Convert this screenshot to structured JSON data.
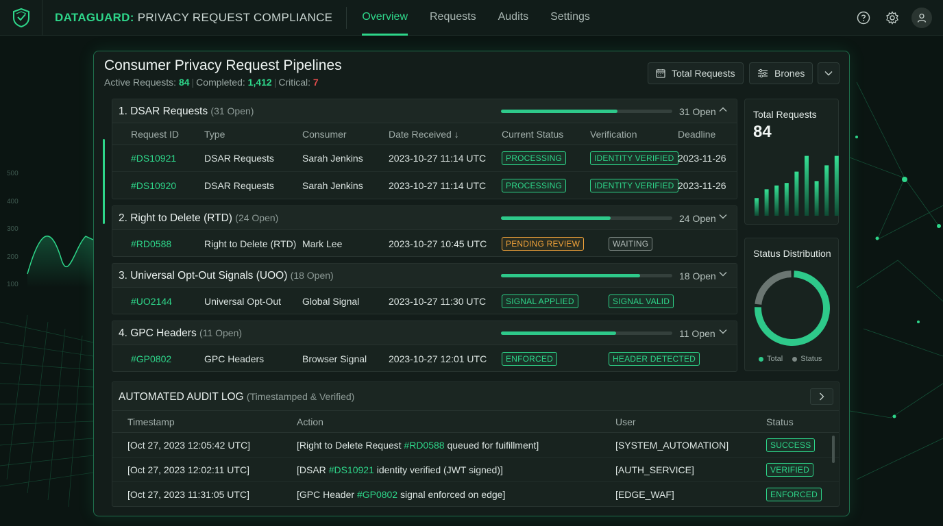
{
  "app": {
    "brand": "DATAGUARD:",
    "title_rest": " PRIVACY REQUEST COMPLIANCE",
    "nav": [
      "Overview",
      "Requests",
      "Audits",
      "Settings"
    ],
    "active_nav": "Overview",
    "icons": [
      "shield-logo-icon",
      "help-icon",
      "gear-icon",
      "user-icon"
    ]
  },
  "bg_axis": [
    "500",
    "400",
    "300",
    "200",
    "100"
  ],
  "panel": {
    "title": "Consumer Privacy Request Pipelines",
    "stats": {
      "active_label": "Active Requests:",
      "active_value": "84",
      "completed_label": "Completed:",
      "completed_value": "1,412",
      "critical_label": "Critical:",
      "critical_value": "7"
    },
    "controls": {
      "total_requests": "Total Requests",
      "filter": "Brones"
    }
  },
  "columns": [
    "Request ID",
    "Type",
    "Consumer",
    "Date Received",
    "Current Status",
    "Verification",
    "Deadline"
  ],
  "sort_indicator": "↓",
  "groups": [
    {
      "title": "1. DSAR Requests",
      "open_note": "(31 Open)",
      "open_label": "31 Open",
      "progress": 0.68,
      "expanded": true,
      "rows": [
        {
          "id": "#DS10921",
          "type": "DSAR Requests",
          "consumer": "Sarah Jenkins",
          "date": "2023-10-27 11:14 UTC",
          "status": "PROCESSING",
          "status_color": "green",
          "verification": "IDENTITY VERIFIED",
          "verification_color": "green",
          "deadline": "2023-11-26"
        },
        {
          "id": "#DS10920",
          "type": "DSAR Requests",
          "consumer": "Sarah Jenkins",
          "date": "2023-10-27 11:14 UTC",
          "status": "PROCESSING",
          "status_color": "green",
          "verification": "IDENTITY VERIFIED",
          "verification_color": "green",
          "deadline": "2023-11-26"
        }
      ]
    },
    {
      "title": "2. Right to Delete (RTD)",
      "open_note": "(24 Open)",
      "open_label": "24 Open",
      "progress": 0.64,
      "expanded": false,
      "rows": [
        {
          "id": "#RD0588",
          "type": "Right to Delete (RTD)",
          "consumer": "Mark Lee",
          "date": "2023-10-27 10:45 UTC",
          "status": "PENDING REVIEW",
          "status_color": "orange",
          "verification": "WAITING",
          "verification_color": "gray",
          "deadline": ""
        }
      ]
    },
    {
      "title": "3. Universal Opt-Out Signals (UOO)",
      "open_note": "(18 Open)",
      "open_label": "18 Open",
      "progress": 0.81,
      "expanded": false,
      "rows": [
        {
          "id": "#UO2144",
          "type": "Universal Opt-Out",
          "consumer": "Global Signal",
          "date": "2023-10-27 11:30 UTC",
          "status": "SIGNAL APPLIED",
          "status_color": "green",
          "verification": "SIGNAL VALID",
          "verification_color": "green",
          "deadline": ""
        }
      ]
    },
    {
      "title": "4. GPC Headers",
      "open_note": "(11 Open)",
      "open_label": "11 Open",
      "progress": 0.67,
      "expanded": false,
      "rows": [
        {
          "id": "#GP0802",
          "type": "GPC Headers",
          "consumer": "Browser Signal",
          "date": "2023-10-27 12:01 UTC",
          "status": "ENFORCED",
          "status_color": "green",
          "verification": "HEADER DETECTED",
          "verification_color": "green",
          "deadline": ""
        }
      ]
    }
  ],
  "side": {
    "total_title": "Total Requests",
    "total_value": "84",
    "mini_bars": [
      0.28,
      0.42,
      0.48,
      0.52,
      0.7,
      0.95,
      0.55,
      0.8,
      0.95
    ],
    "mini_bars_dark": [
      0.28,
      0.42,
      0.48,
      0.52,
      0.7,
      0.95,
      0.55,
      0.85,
      0.95
    ],
    "distribution_title": "Status Distribution",
    "chart_data": {
      "type": "pie",
      "title": "Status Distribution",
      "series": [
        {
          "name": "Total",
          "value": 0.76,
          "color": "#2ec98a"
        },
        {
          "name": "Status",
          "value": 0.24,
          "color": "#6b7672"
        }
      ]
    },
    "legend": [
      "Total",
      "Status"
    ]
  },
  "audit": {
    "title": "AUTOMATED AUDIT LOG",
    "subtitle": "(Timestamped & Verified)",
    "columns": [
      "Timestamp",
      "Action",
      "User",
      "Status"
    ],
    "rows": [
      {
        "timestamp": "[Oct 27, 2023 12:05:42 UTC]",
        "action_pre": "[Right to Delete Request ",
        "action_id": "#RD0588",
        "action_post": " queued for fuifillment]",
        "user": "[SYSTEM_AUTOMATION]",
        "status": "SUCCESS"
      },
      {
        "timestamp": "[Oct 27, 2023 12:02:11 UTC]",
        "action_pre": "[DSAR ",
        "action_id": "#DS10921",
        "action_post": " identity verified (JWT signed)]",
        "user": "[AUTH_SERVICE]",
        "status": "VERIFIED"
      },
      {
        "timestamp": "[Oct 27, 2023 11:31:05 UTC]",
        "action_pre": "[GPC Header ",
        "action_id": "#GP0802",
        "action_post": " signal enforced on edge]",
        "user": "[EDGE_WAF]",
        "status": "ENFORCED"
      }
    ]
  },
  "colors": {
    "accent": "#2ed68a",
    "warning": "#f0a23a",
    "critical": "#e24c4c",
    "panel_border": "#1f6e4c"
  }
}
